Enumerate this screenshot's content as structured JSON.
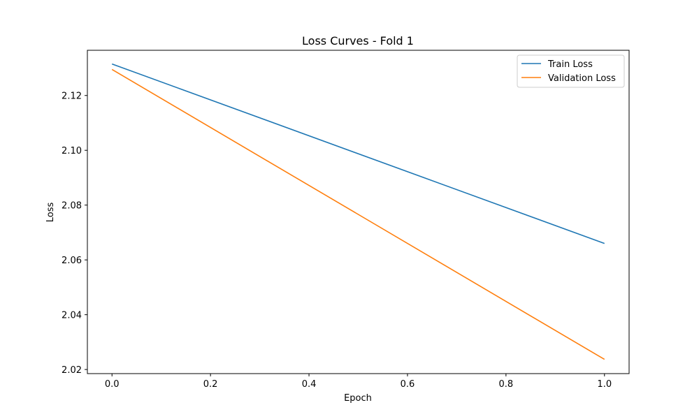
{
  "chart_data": {
    "type": "line",
    "title": "Loss Curves - Fold 1",
    "xlabel": "Epoch",
    "ylabel": "Loss",
    "xlim": [
      -0.05,
      1.05
    ],
    "ylim": [
      2.0185,
      2.1365
    ],
    "xticks": [
      0.0,
      0.2,
      0.4,
      0.6,
      0.8,
      1.0
    ],
    "xtick_labels": [
      "0.0",
      "0.2",
      "0.4",
      "0.6",
      "0.8",
      "1.0"
    ],
    "yticks": [
      2.02,
      2.04,
      2.06,
      2.08,
      2.1,
      2.12
    ],
    "ytick_labels": [
      "2.02",
      "2.04",
      "2.06",
      "2.08",
      "2.10",
      "2.12"
    ],
    "grid": false,
    "legend_position": "top-right",
    "series": [
      {
        "name": "Train Loss",
        "color": "#1f77b4",
        "x": [
          0,
          1
        ],
        "y": [
          2.1315,
          2.066
        ]
      },
      {
        "name": "Validation Loss",
        "color": "#ff7f0e",
        "x": [
          0,
          1
        ],
        "y": [
          2.1295,
          2.0237
        ]
      }
    ]
  }
}
